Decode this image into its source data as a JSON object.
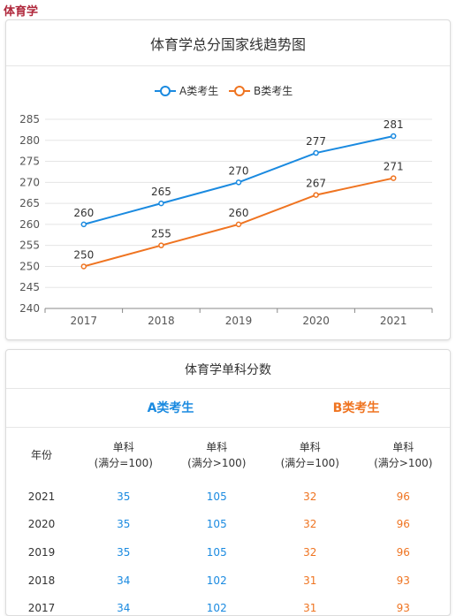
{
  "page_label": "体育学",
  "chart_data": {
    "type": "line",
    "title": "体育学总分国家线趋势图",
    "categories": [
      "2017",
      "2018",
      "2019",
      "2020",
      "2021"
    ],
    "series": [
      {
        "name": "A类考生",
        "values": [
          260,
          265,
          270,
          277,
          281
        ],
        "color": "#1a8ae0"
      },
      {
        "name": "B类考生",
        "values": [
          250,
          255,
          260,
          267,
          271
        ],
        "color": "#ef7421"
      }
    ],
    "ylim": [
      240,
      285
    ],
    "yticks": [
      240,
      245,
      250,
      255,
      260,
      265,
      270,
      275,
      280,
      285
    ],
    "grid": true,
    "legend": "top-center"
  },
  "table": {
    "title": "体育学单科分数",
    "group_a": "A类考生",
    "group_b": "B类考生",
    "headers": [
      {
        "line1": "年份",
        "line2": ""
      },
      {
        "line1": "单科",
        "line2": "(满分=100)"
      },
      {
        "line1": "单科",
        "line2": "(满分>100)"
      },
      {
        "line1": "单科",
        "line2": "(满分=100)"
      },
      {
        "line1": "单科",
        "line2": "(满分>100)"
      }
    ],
    "rows": [
      [
        "2021",
        "35",
        "105",
        "32",
        "96"
      ],
      [
        "2020",
        "35",
        "105",
        "32",
        "96"
      ],
      [
        "2019",
        "35",
        "105",
        "32",
        "96"
      ],
      [
        "2018",
        "34",
        "102",
        "31",
        "93"
      ],
      [
        "2017",
        "34",
        "102",
        "31",
        "93"
      ]
    ]
  }
}
